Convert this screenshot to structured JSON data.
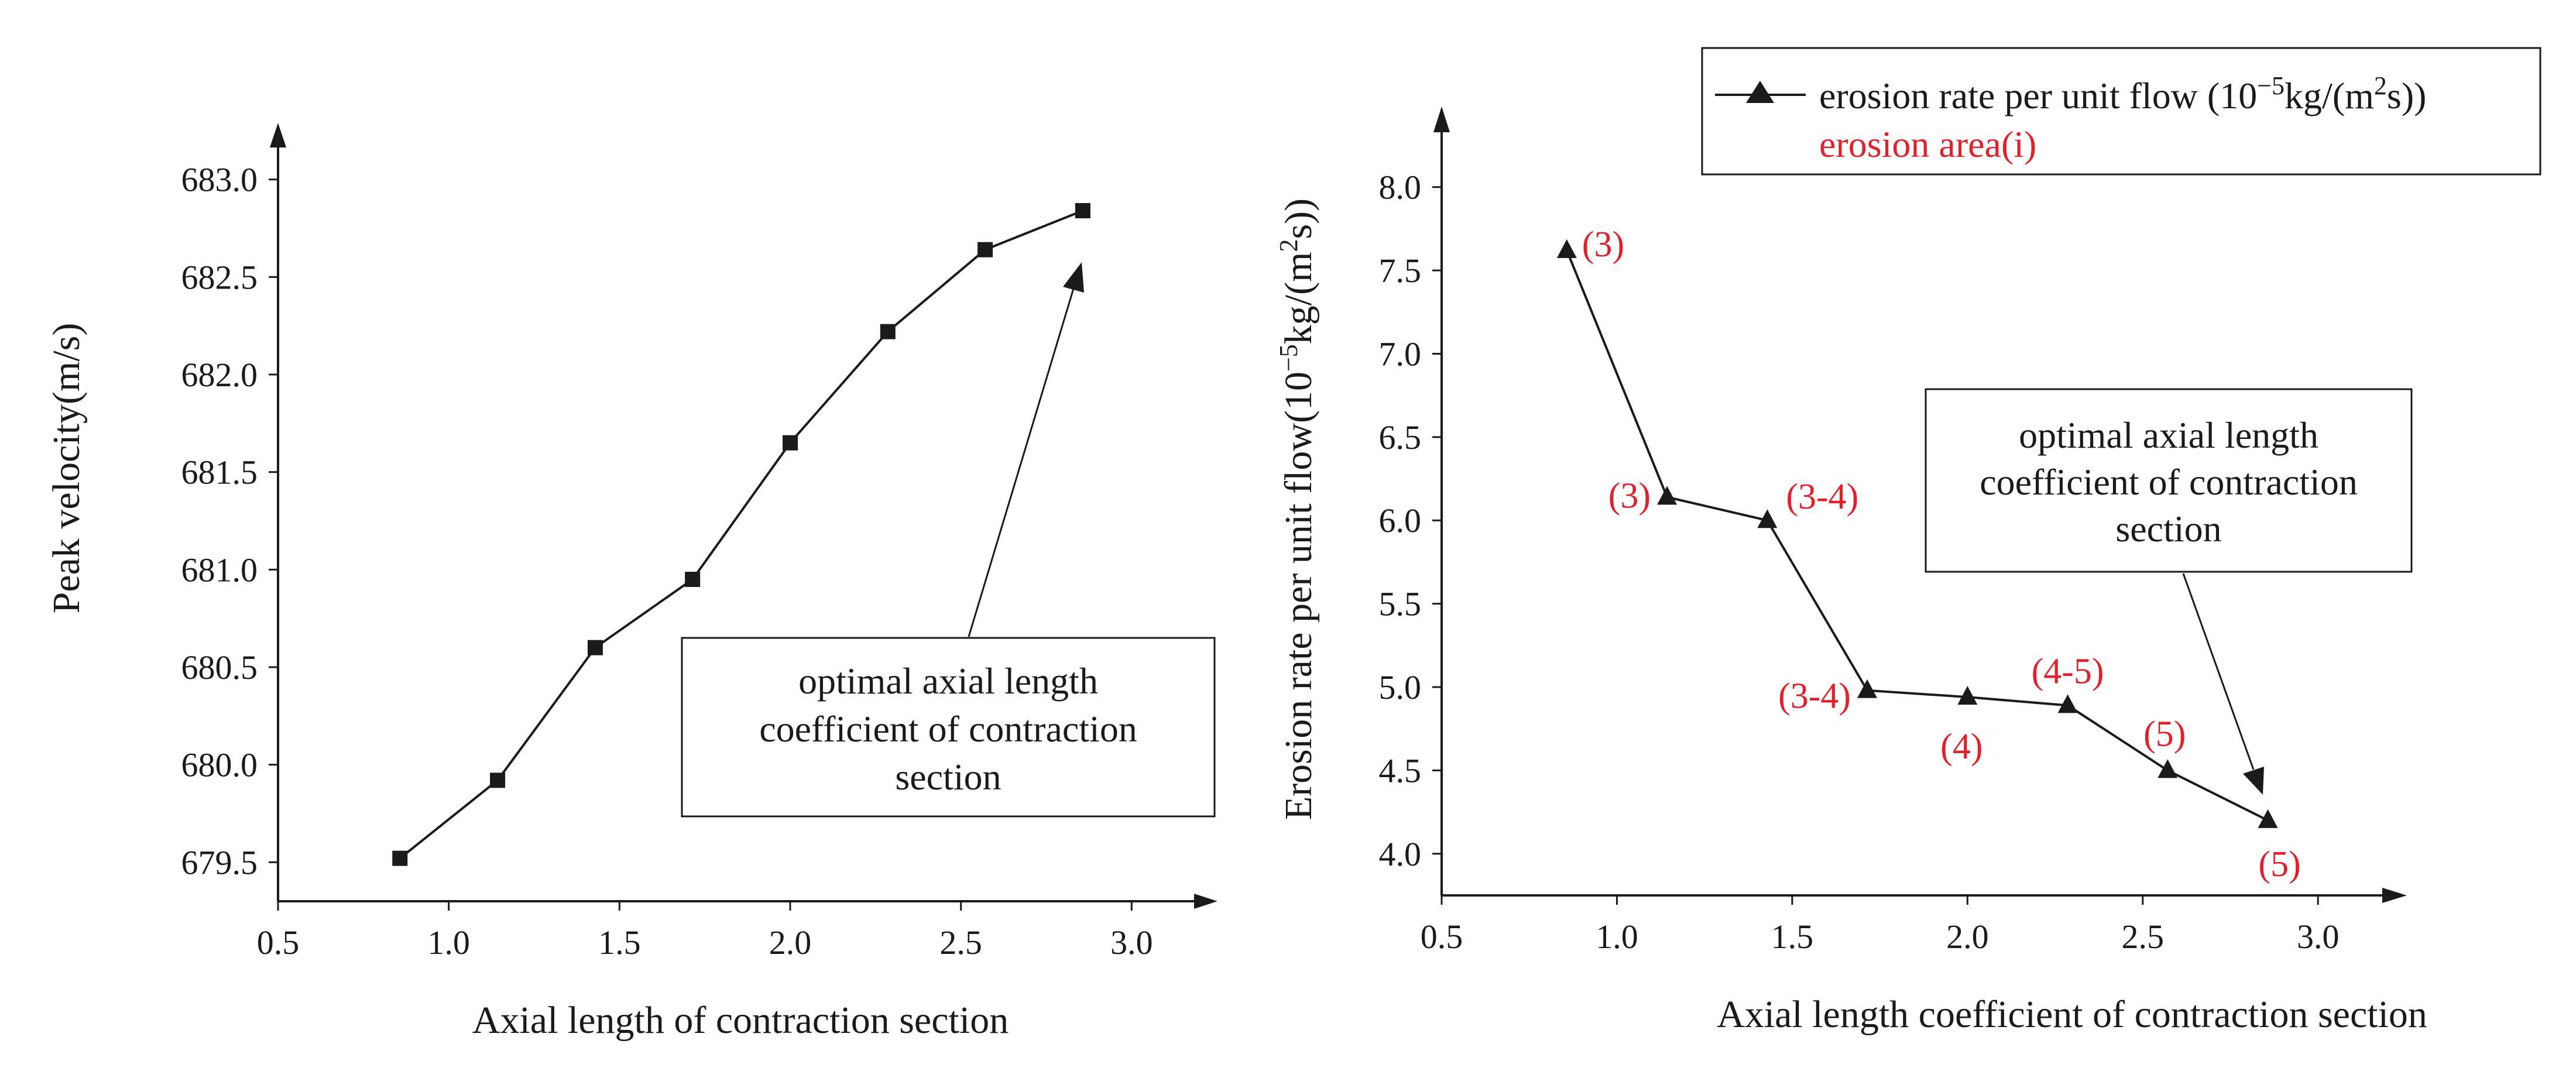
{
  "chart_data": [
    {
      "type": "line",
      "title": "",
      "xlabel": "Axial length of contraction section",
      "ylabel": "Peak velocity(m/s)",
      "xlim": [
        0.5,
        3.2
      ],
      "ylim": [
        679.3,
        683.2
      ],
      "x_ticks": [
        "0.5",
        "1.0",
        "1.5",
        "2.0",
        "2.5",
        "3.0"
      ],
      "y_ticks": [
        "679.5",
        "680.0",
        "680.5",
        "681.0",
        "681.5",
        "682.0",
        "682.5",
        "683.0"
      ],
      "series": [
        {
          "name": "Peak velocity",
          "marker": "square",
          "x": [
            0.857,
            1.143,
            1.429,
            1.714,
            2.0,
            2.286,
            2.571,
            2.857
          ],
          "y": [
            679.52,
            679.92,
            680.6,
            680.95,
            681.65,
            682.22,
            682.64,
            682.84
          ]
        }
      ],
      "callout": {
        "lines": [
          "optimal axial length",
          "coefficient of contraction",
          "section"
        ],
        "points_to": [
          2.857,
          682.84
        ]
      }
    },
    {
      "type": "line",
      "title": "",
      "xlabel": "Axial length coefficient of contraction section",
      "ylabel": "Erosion rate per unit flow(10⁻⁵kg/(m²s))",
      "xlim": [
        0.5,
        3.2
      ],
      "ylim": [
        3.75,
        8.35
      ],
      "x_ticks": [
        "0.5",
        "1.0",
        "1.5",
        "2.0",
        "2.5",
        "3.0"
      ],
      "y_ticks": [
        "4.0",
        "4.5",
        "5.0",
        "5.5",
        "6.0",
        "6.5",
        "7.0",
        "7.5",
        "8.0"
      ],
      "series": [
        {
          "name": "erosion rate per unit flow (10⁻⁵kg/(m²s))",
          "marker": "triangle",
          "x": [
            0.857,
            1.143,
            1.429,
            1.714,
            2.0,
            2.286,
            2.571,
            2.857
          ],
          "y": [
            7.62,
            6.14,
            6.0,
            4.98,
            4.94,
            4.89,
            4.5,
            4.2
          ]
        }
      ],
      "annotations": [
        "(3)",
        "(3)",
        "(3-4)",
        "(3-4)",
        "(4)",
        "(4-5)",
        "(5)",
        "(5)"
      ],
      "legend": {
        "position": "top-right",
        "entries": [
          {
            "label": "erosion rate per unit flow (10⁻⁵kg/(m²s))",
            "color": "#1a1a1a"
          },
          {
            "label": "erosion area(i)",
            "color": "#e0202a"
          }
        ]
      },
      "callout": {
        "lines": [
          "optimal axial length",
          "coefficient of contraction",
          "section"
        ],
        "points_to": [
          2.857,
          4.2
        ]
      }
    }
  ],
  "colors": {
    "line": "#1a1a1a",
    "annotation": "#e0202a"
  }
}
